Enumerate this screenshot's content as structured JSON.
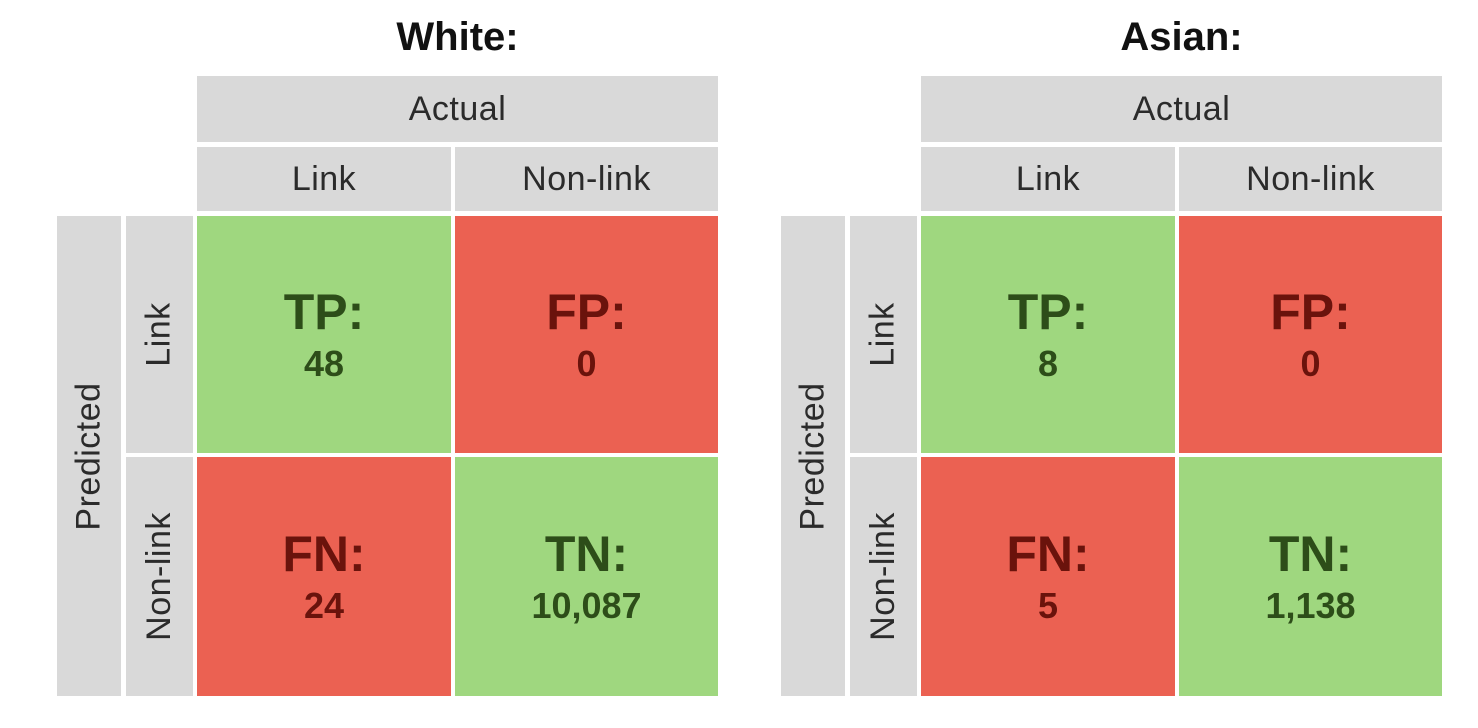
{
  "panels": [
    {
      "title": "White:",
      "actual_label": "Actual",
      "predicted_label": "Predicted",
      "columns": [
        "Link",
        "Non-link"
      ],
      "rows": [
        "Link",
        "Non-link"
      ],
      "tp": {
        "label": "TP:",
        "value": "48"
      },
      "fp": {
        "label": "FP:",
        "value": "0"
      },
      "fn": {
        "label": "FN:",
        "value": "24"
      },
      "tn": {
        "label": "TN:",
        "value": "10,087"
      }
    },
    {
      "title": "Asian:",
      "actual_label": "Actual",
      "predicted_label": "Predicted",
      "columns": [
        "Link",
        "Non-link"
      ],
      "rows": [
        "Link",
        "Non-link"
      ],
      "tp": {
        "label": "TP:",
        "value": "8"
      },
      "fp": {
        "label": "FP:",
        "value": "0"
      },
      "fn": {
        "label": "FN:",
        "value": "5"
      },
      "tn": {
        "label": "TN:",
        "value": "1,138"
      }
    }
  ],
  "colors": {
    "header_gray": "#d9d9d9",
    "correct_green": "#9fd77f",
    "error_red": "#eb6152",
    "green_text": "#2d4d19",
    "red_text": "#6a130c"
  }
}
